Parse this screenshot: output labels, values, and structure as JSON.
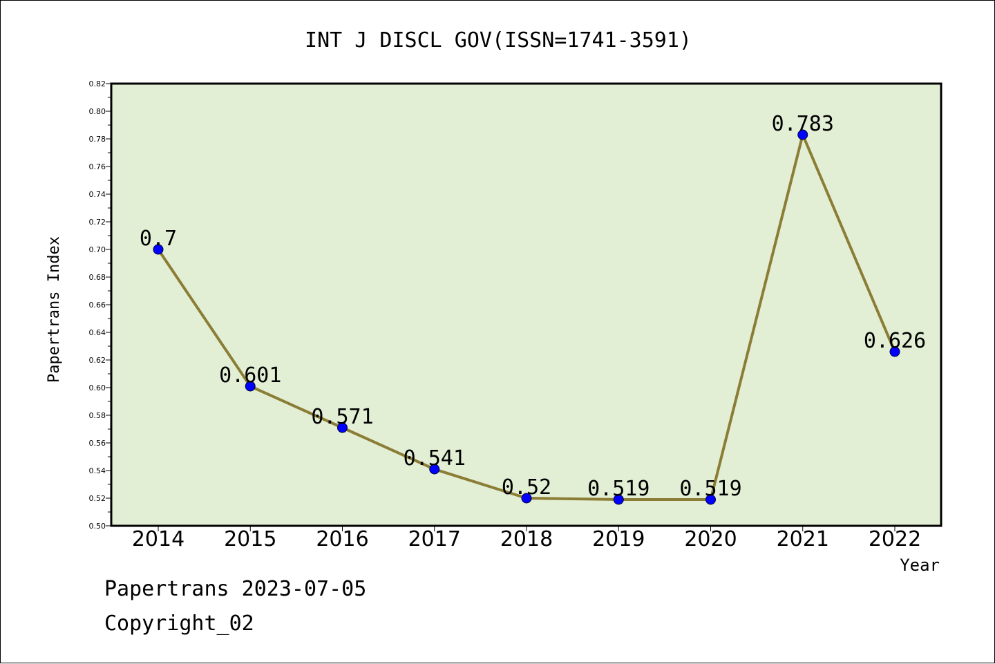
{
  "chart_data": {
    "type": "line",
    "title": "INT J DISCL GOV(ISSN=1741-3591)",
    "xlabel": "Year",
    "ylabel": "Papertrans Index",
    "categories": [
      "2014",
      "2015",
      "2016",
      "2017",
      "2018",
      "2019",
      "2020",
      "2021",
      "2022"
    ],
    "series": [
      {
        "values": [
          0.7,
          0.601,
          0.571,
          0.541,
          0.52,
          0.519,
          0.519,
          0.783,
          0.626
        ],
        "labels": [
          "0.7",
          "0.601",
          "0.571",
          "0.541",
          "0.52",
          "0.519",
          "0.519",
          "0.783",
          "0.626"
        ]
      }
    ],
    "ylim": [
      0.5,
      0.82
    ],
    "ytick_labels": [
      "0.50",
      "0.52",
      "0.54",
      "0.56",
      "0.58",
      "0.60",
      "0.62",
      "0.64",
      "0.66",
      "0.68",
      "0.70",
      "0.72",
      "0.74",
      "0.76",
      "0.78",
      "0.80",
      "0.82"
    ],
    "grid": false,
    "legend": "none",
    "colors": {
      "plot_background": "#e2efd5",
      "line": "#8b7d35",
      "marker": "#0000ff"
    }
  },
  "footer": {
    "line1": "Papertrans 2023-07-05",
    "line2": "Copyright_02"
  }
}
